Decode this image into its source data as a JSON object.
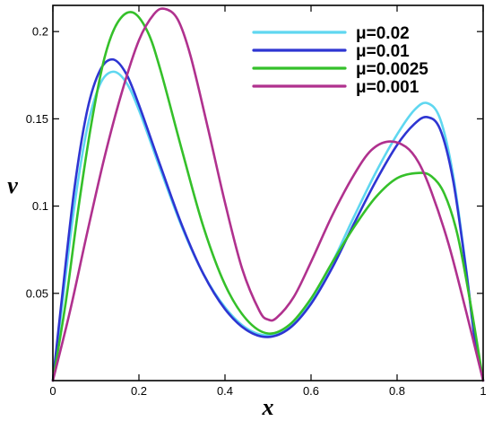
{
  "chart_data": {
    "type": "line",
    "title": "",
    "xlabel": "x",
    "ylabel": "v",
    "xlim": [
      0,
      1
    ],
    "ylim": [
      0,
      0.215
    ],
    "x_ticks": [
      "0",
      "0.2",
      "0.4",
      "0.6",
      "0.8",
      "1"
    ],
    "y_ticks": [
      "0.05",
      "0.1",
      "0.15",
      "0.2"
    ],
    "grid": false,
    "legend_position": "top-right",
    "series": [
      {
        "name": "μ=0.02",
        "color": "#5fd7f0",
        "points": [
          [
            0,
            0
          ],
          [
            0.02,
            0.04
          ],
          [
            0.05,
            0.1
          ],
          [
            0.08,
            0.145
          ],
          [
            0.11,
            0.17
          ],
          [
            0.14,
            0.177
          ],
          [
            0.17,
            0.171
          ],
          [
            0.2,
            0.155
          ],
          [
            0.25,
            0.121
          ],
          [
            0.3,
            0.088
          ],
          [
            0.35,
            0.061
          ],
          [
            0.4,
            0.042
          ],
          [
            0.45,
            0.03
          ],
          [
            0.5,
            0.026
          ],
          [
            0.55,
            0.031
          ],
          [
            0.6,
            0.046
          ],
          [
            0.65,
            0.068
          ],
          [
            0.7,
            0.094
          ],
          [
            0.75,
            0.119
          ],
          [
            0.8,
            0.141
          ],
          [
            0.84,
            0.155
          ],
          [
            0.87,
            0.159
          ],
          [
            0.9,
            0.15
          ],
          [
            0.93,
            0.118
          ],
          [
            0.96,
            0.065
          ],
          [
            0.98,
            0.025
          ],
          [
            1.0,
            0
          ]
        ]
      },
      {
        "name": "μ=0.01",
        "color": "#2e35d2",
        "points": [
          [
            0,
            0
          ],
          [
            0.02,
            0.045
          ],
          [
            0.05,
            0.11
          ],
          [
            0.08,
            0.155
          ],
          [
            0.11,
            0.178
          ],
          [
            0.14,
            0.184
          ],
          [
            0.17,
            0.176
          ],
          [
            0.2,
            0.158
          ],
          [
            0.25,
            0.123
          ],
          [
            0.3,
            0.089
          ],
          [
            0.35,
            0.061
          ],
          [
            0.4,
            0.041
          ],
          [
            0.45,
            0.029
          ],
          [
            0.5,
            0.025
          ],
          [
            0.55,
            0.03
          ],
          [
            0.6,
            0.044
          ],
          [
            0.65,
            0.065
          ],
          [
            0.7,
            0.09
          ],
          [
            0.75,
            0.114
          ],
          [
            0.8,
            0.135
          ],
          [
            0.84,
            0.147
          ],
          [
            0.87,
            0.151
          ],
          [
            0.9,
            0.144
          ],
          [
            0.93,
            0.115
          ],
          [
            0.96,
            0.064
          ],
          [
            0.98,
            0.025
          ],
          [
            1.0,
            0
          ]
        ]
      },
      {
        "name": "μ=0.0025",
        "color": "#35c02a",
        "points": [
          [
            0,
            0
          ],
          [
            0.03,
            0.045
          ],
          [
            0.06,
            0.1
          ],
          [
            0.09,
            0.148
          ],
          [
            0.12,
            0.185
          ],
          [
            0.15,
            0.205
          ],
          [
            0.185,
            0.211
          ],
          [
            0.22,
            0.2
          ],
          [
            0.25,
            0.178
          ],
          [
            0.3,
            0.132
          ],
          [
            0.35,
            0.088
          ],
          [
            0.4,
            0.055
          ],
          [
            0.45,
            0.035
          ],
          [
            0.5,
            0.027
          ],
          [
            0.55,
            0.032
          ],
          [
            0.6,
            0.047
          ],
          [
            0.65,
            0.068
          ],
          [
            0.7,
            0.088
          ],
          [
            0.75,
            0.105
          ],
          [
            0.8,
            0.116
          ],
          [
            0.85,
            0.119
          ],
          [
            0.88,
            0.117
          ],
          [
            0.91,
            0.107
          ],
          [
            0.94,
            0.084
          ],
          [
            0.97,
            0.045
          ],
          [
            1.0,
            0
          ]
        ]
      },
      {
        "name": "μ=0.001",
        "color": "#b0318e",
        "points": [
          [
            0,
            0
          ],
          [
            0.04,
            0.04
          ],
          [
            0.08,
            0.085
          ],
          [
            0.12,
            0.128
          ],
          [
            0.16,
            0.165
          ],
          [
            0.2,
            0.195
          ],
          [
            0.235,
            0.21
          ],
          [
            0.26,
            0.213
          ],
          [
            0.29,
            0.207
          ],
          [
            0.32,
            0.186
          ],
          [
            0.36,
            0.145
          ],
          [
            0.4,
            0.102
          ],
          [
            0.44,
            0.064
          ],
          [
            0.48,
            0.04
          ],
          [
            0.5,
            0.035
          ],
          [
            0.52,
            0.036
          ],
          [
            0.56,
            0.048
          ],
          [
            0.6,
            0.068
          ],
          [
            0.65,
            0.095
          ],
          [
            0.7,
            0.118
          ],
          [
            0.74,
            0.132
          ],
          [
            0.78,
            0.137
          ],
          [
            0.82,
            0.134
          ],
          [
            0.85,
            0.125
          ],
          [
            0.88,
            0.108
          ],
          [
            0.92,
            0.078
          ],
          [
            0.96,
            0.04
          ],
          [
            1.0,
            0
          ]
        ]
      }
    ]
  }
}
